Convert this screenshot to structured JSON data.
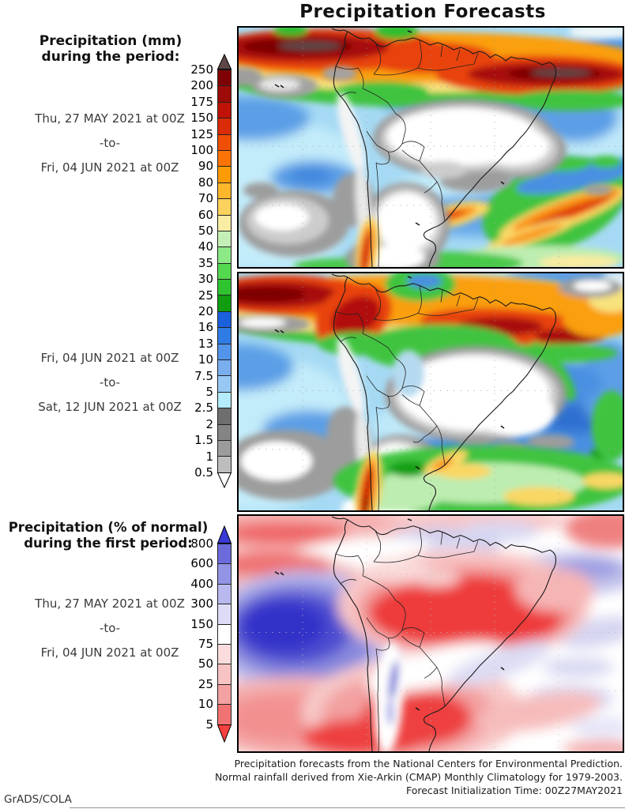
{
  "title": "Precipitation Forecasts",
  "left_column": {
    "mm_header_line1": "Precipitation (mm)",
    "mm_header_line2": "during the period:",
    "pct_header_line1": "Precipitation (% of normal)",
    "pct_header_line2": "during the first period:",
    "period1": {
      "from": "Thu, 27 MAY 2021 at 00Z",
      "sep": "-to-",
      "to": "Fri, 04 JUN 2021 at 00Z"
    },
    "period2": {
      "from": "Fri, 04 JUN 2021 at 00Z",
      "sep": "-to-",
      "to": "Sat, 12 JUN 2021 at 00Z"
    },
    "period3": {
      "from": "Thu, 27 MAY 2021 at 00Z",
      "sep": "-to-",
      "to": "Fri, 04 JUN 2021 at 00Z"
    }
  },
  "colorbars": {
    "mm": {
      "units": "mm",
      "over_color": "#5e4747",
      "under_color": "#ffffff",
      "tick_labels": [
        "250",
        "200",
        "175",
        "150",
        "125",
        "100",
        "90",
        "80",
        "70",
        "60",
        "50",
        "40",
        "35",
        "30",
        "25",
        "20",
        "16",
        "13",
        "10",
        "7.5",
        "5",
        "2.5",
        "2",
        "1.5",
        "1",
        "0.5"
      ],
      "segment_colors": [
        "#7f0306",
        "#9c0b08",
        "#c01206",
        "#da2c07",
        "#ef4f05",
        "#fb7405",
        "#fd9b07",
        "#feb62b",
        "#fbd25d",
        "#f8eda2",
        "#c5efb7",
        "#8ce985",
        "#54d850",
        "#2fc32f",
        "#109d10",
        "#1b60dd",
        "#2f7ce4",
        "#5394ea",
        "#79aeef",
        "#97c8f3",
        "#b4ecfb",
        "#6e6e6e",
        "#848484",
        "#9c9c9c",
        "#bdbdbd"
      ]
    },
    "pct": {
      "units": "% of normal",
      "over_color": "#3a3ad4",
      "under_color": "#f54040",
      "tick_labels": [
        "800",
        "600",
        "400",
        "300",
        "150",
        "75",
        "50",
        "25",
        "10",
        "5"
      ],
      "segment_colors": [
        "#6b6bdc",
        "#9393e6",
        "#b9b9ef",
        "#dcdcf7",
        "#ffffff",
        "#fbdcdc",
        "#f8c3c3",
        "#f4a1a1",
        "#f17272"
      ]
    }
  },
  "footer": {
    "lines": [
      "Precipitation forecasts from the National Centers for Environmental Prediction.",
      "Normal rainfall derived from Xie-Arkin (CMAP) Monthly Climatology for 1979-2003.",
      "Forecast Initialization Time: 00Z27MAY2021"
    ]
  },
  "credit": "GrADS/COLA"
}
